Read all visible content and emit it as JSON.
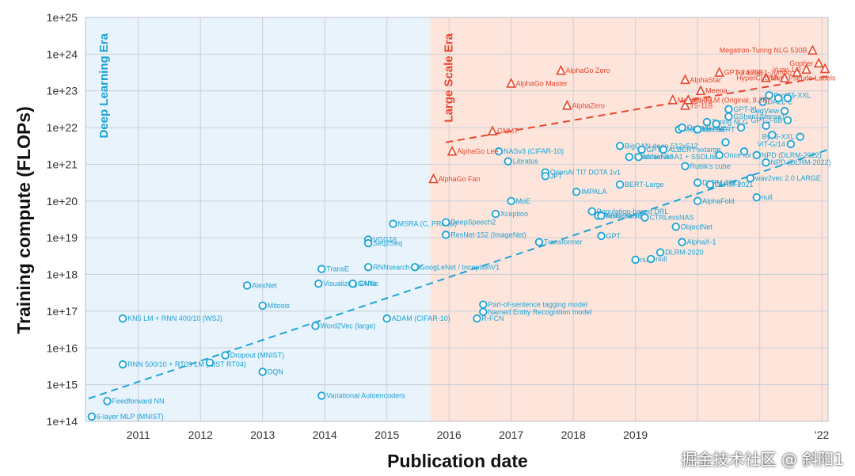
{
  "chart_data": {
    "type": "scatter",
    "xlabel": "Publication date",
    "ylabel": "Training compute (FLOPs)",
    "x_ticks": [
      "2011",
      "2012",
      "2013",
      "2014",
      "2015",
      "2016",
      "2017",
      "2018",
      "2019",
      "",
      "",
      "'22"
    ],
    "y_ticks": [
      "1e+14",
      "1e+15",
      "1e+16",
      "1e+17",
      "1e+18",
      "1e+19",
      "1e+20",
      "1e+21",
      "1e+22",
      "1e+23",
      "1e+24",
      "1e+25"
    ],
    "xlim": [
      2010.15,
      2022.1
    ],
    "ylog_exponent_range": [
      14,
      25
    ],
    "grid": true,
    "eras": [
      {
        "name": "Deep Learning Era",
        "start": 2010.15,
        "end": 2015.7,
        "color": "#e9f3fb",
        "label_color": "#1aa3d6"
      },
      {
        "name": "Large Scale Era",
        "start": 2015.7,
        "end": 2022.1,
        "color": "#fde5dc",
        "label_color": "#e8452c"
      }
    ],
    "trend_lines": [
      {
        "name": "",
        "color": "#1aa3d6",
        "x": [
          2010.2,
          2022.1
        ],
        "log10_y": [
          14.62,
          21.4
        ]
      },
      {
        "name": "",
        "color": "#e8452c",
        "x": [
          2015.95,
          2022.1
        ],
        "log10_y": [
          21.6,
          23.4
        ]
      }
    ],
    "series": [
      {
        "name": "",
        "marker": "circle",
        "color": "#1aa3d6",
        "points": [
          {
            "label": "6-layer MLP (MNIST)",
            "x": 2010.25,
            "log10_y": 14.13
          },
          {
            "label": "Feedforward NN",
            "x": 2010.5,
            "log10_y": 14.55
          },
          {
            "label": "RNN 500/10 + RT09 LM (NIST RT04)",
            "x": 2010.75,
            "log10_y": 15.55
          },
          {
            "label": "KN5 LM + RNN 400/10 (WSJ)",
            "x": 2010.75,
            "log10_y": 16.8
          },
          {
            "label": "Dropout (MNIST)",
            "x": 2012.4,
            "log10_y": 15.8
          },
          {
            "label": "",
            "x": 2012.15,
            "log10_y": 15.6
          },
          {
            "label": "AlexNet",
            "x": 2012.75,
            "log10_y": 17.7
          },
          {
            "label": "Mitosis",
            "x": 2013.0,
            "log10_y": 17.15
          },
          {
            "label": "DQN",
            "x": 2013.0,
            "log10_y": 15.35
          },
          {
            "label": "TransE",
            "x": 2013.95,
            "log10_y": 18.15
          },
          {
            "label": "Visualizing CNNs",
            "x": 2013.9,
            "log10_y": 17.75
          },
          {
            "label": "GANs",
            "x": 2014.45,
            "log10_y": 17.75
          },
          {
            "label": "Word2Vec (large)",
            "x": 2013.85,
            "log10_y": 16.6
          },
          {
            "label": "Variational Autoencoders",
            "x": 2013.95,
            "log10_y": 14.7
          },
          {
            "label": "VGG16",
            "x": 2014.7,
            "log10_y": 18.95
          },
          {
            "label": "Seq2Seq",
            "x": 2014.7,
            "log10_y": 18.85
          },
          {
            "label": "RNNsearch-50*",
            "x": 2014.7,
            "log10_y": 18.2
          },
          {
            "label": "MSRA (C, PReLU)",
            "x": 2015.1,
            "log10_y": 19.38
          },
          {
            "label": "GoogLeNet / InceptionV1",
            "x": 2015.45,
            "log10_y": 18.2
          },
          {
            "label": "ADAM (CIFAR-10)",
            "x": 2015.0,
            "log10_y": 16.8
          },
          {
            "label": "R-FCN",
            "x": 2016.45,
            "log10_y": 16.8
          },
          {
            "label": "Part-of-sentence tagging model",
            "x": 2016.55,
            "log10_y": 17.18
          },
          {
            "label": "Named Entity Recognition model",
            "x": 2016.55,
            "log10_y": 16.98
          },
          {
            "label": "DeepSpeech2",
            "x": 2015.95,
            "log10_y": 19.42
          },
          {
            "label": "ResNet-152 (ImageNet)",
            "x": 2015.95,
            "log10_y": 19.08
          },
          {
            "label": "Xception",
            "x": 2016.75,
            "log10_y": 19.65
          },
          {
            "label": "NASv3 (CIFAR-10)",
            "x": 2016.8,
            "log10_y": 21.35
          },
          {
            "label": "Libratus",
            "x": 2016.95,
            "log10_y": 21.08
          },
          {
            "label": "OpenAI TI7 DOTA 1v1",
            "x": 2017.55,
            "log10_y": 20.78
          },
          {
            "label": "JFT",
            "x": 2017.55,
            "log10_y": 20.68
          },
          {
            "label": "MoE",
            "x": 2017.0,
            "log10_y": 20.0
          },
          {
            "label": "Transformer",
            "x": 2017.45,
            "log10_y": 18.88
          },
          {
            "label": "IMPALA",
            "x": 2018.05,
            "log10_y": 20.25
          },
          {
            "label": "BigGAN-deep 512x512",
            "x": 2018.75,
            "log10_y": 21.5
          },
          {
            "label": "BERT-Large",
            "x": 2018.75,
            "log10_y": 20.45
          },
          {
            "label": "Population-based DRL",
            "x": 2018.3,
            "log10_y": 19.72
          },
          {
            "label": "ResNeXt-101",
            "x": 2018.4,
            "log10_y": 19.6
          },
          {
            "label": "GPT",
            "x": 2018.45,
            "log10_y": 19.05
          },
          {
            "label": "AmoebaNet",
            "x": 2018.45,
            "log10_y": 19.6
          },
          {
            "label": "MnasNet-A3",
            "x": 2018.9,
            "log10_y": 21.2
          },
          {
            "label": "MnasNet-A1 + SSDLite",
            "x": 2019.05,
            "log10_y": 21.2
          },
          {
            "label": "GPT-2",
            "x": 2019.1,
            "log10_y": 21.4
          },
          {
            "label": "ALBERT-xxlarge",
            "x": 2019.45,
            "log10_y": 21.4
          },
          {
            "label": "Rubik's cube",
            "x": 2019.8,
            "log10_y": 20.95
          },
          {
            "label": "ObjectNet",
            "x": 2019.65,
            "log10_y": 19.3
          },
          {
            "label": "AlphaX-1",
            "x": 2019.75,
            "log10_y": 18.88
          },
          {
            "label": "DLRM-2020",
            "x": 2019.4,
            "log10_y": 18.6
          },
          {
            "label": "null",
            "x": 2019.0,
            "log10_y": 18.4
          },
          {
            "label": "null",
            "x": 2019.25,
            "log10_y": 18.42
          },
          {
            "label": "CTRLessNAS",
            "x": 2019.15,
            "log10_y": 19.55
          },
          {
            "label": "AlphaFold",
            "x": 2020.0,
            "log10_y": 20.0
          },
          {
            "label": "wav2vec 2.0 LARGE",
            "x": 2020.85,
            "log10_y": 20.62
          },
          {
            "label": "DLRM-2021",
            "x": 2020.0,
            "log10_y": 20.5
          },
          {
            "label": "DLRM-2021",
            "x": 2020.2,
            "log10_y": 20.45
          },
          {
            "label": "null",
            "x": 2020.95,
            "log10_y": 20.1
          },
          {
            "label": "Once for All",
            "x": 2020.35,
            "log10_y": 21.25
          },
          {
            "label": "NPD (DLRM-2022)",
            "x": 2021.1,
            "log10_y": 21.05
          },
          {
            "label": "NPD (DLRM-2022)",
            "x": 2020.95,
            "log10_y": 21.25
          },
          {
            "label": "Megatron-BERT",
            "x": 2019.7,
            "log10_y": 21.95
          },
          {
            "label": "OpenAI Five",
            "x": 2019.75,
            "log10_y": 22.0
          },
          {
            "label": "Turing NLG",
            "x": 2020.15,
            "log10_y": 22.15
          },
          {
            "label": "Meena",
            "x": 2020.0,
            "log10_y": 21.95
          },
          {
            "label": "GShard (dense)",
            "x": 2020.5,
            "log10_y": 22.3
          },
          {
            "label": "GPT-XL",
            "x": 2020.5,
            "log10_y": 22.5
          },
          {
            "label": "DALL-E",
            "x": 2021.05,
            "log10_y": 22.7
          },
          {
            "label": "ProtT5-XXL",
            "x": 2021.15,
            "log10_y": 22.88
          },
          {
            "label": "CogView",
            "x": 2021.4,
            "log10_y": 22.45
          },
          {
            "label": "GPT-J-6B",
            "x": 2021.45,
            "log10_y": 22.2
          },
          {
            "label": "ViT-G/14",
            "x": 2021.5,
            "log10_y": 21.55
          },
          {
            "label": "ByT5-XXL",
            "x": 2021.65,
            "log10_y": 21.75
          },
          {
            "label": "",
            "x": 2021.3,
            "log10_y": 22.8
          },
          {
            "label": "",
            "x": 2021.45,
            "log10_y": 22.8
          },
          {
            "label": "",
            "x": 2021.1,
            "log10_y": 22.05
          },
          {
            "label": "",
            "x": 2020.75,
            "log10_y": 21.35
          },
          {
            "label": "",
            "x": 2020.45,
            "log10_y": 21.6
          },
          {
            "label": "",
            "x": 2021.2,
            "log10_y": 21.8
          },
          {
            "label": "",
            "x": 2020.7,
            "log10_y": 22.0
          },
          {
            "label": "",
            "x": 2020.3,
            "log10_y": 22.1
          }
        ]
      },
      {
        "name": "",
        "marker": "triangle",
        "color": "#e8452c",
        "points": [
          {
            "label": "AlphaGo Fan",
            "x": 2015.75,
            "log10_y": 20.6
          },
          {
            "label": "AlphaGo Lee",
            "x": 2016.05,
            "log10_y": 21.35
          },
          {
            "label": "GNMT",
            "x": 2016.7,
            "log10_y": 21.9
          },
          {
            "label": "AlphaGo Master",
            "x": 2017.0,
            "log10_y": 23.2
          },
          {
            "label": "AlphaGo Zero",
            "x": 2017.8,
            "log10_y": 23.55
          },
          {
            "label": "AlphaZero",
            "x": 2017.9,
            "log10_y": 22.6
          },
          {
            "label": "Megatron-LM (Original, 8.3B)",
            "x": 2019.6,
            "log10_y": 22.75
          },
          {
            "label": "T5-11B",
            "x": 2019.8,
            "log10_y": 22.6
          },
          {
            "label": "T5-3B",
            "x": 2019.85,
            "log10_y": 22.75
          },
          {
            "label": "Meena",
            "x": 2020.05,
            "log10_y": 23.0
          },
          {
            "label": "AlphaStar",
            "x": 2019.8,
            "log10_y": 23.3
          },
          {
            "label": "GPT-3 175B",
            "x": 2020.35,
            "log10_y": 23.5
          },
          {
            "label": "Meta Pseudo Labels",
            "x": 2021.1,
            "log10_y": 23.35
          },
          {
            "label": "HyperCLOVA",
            "x": 2021.4,
            "log10_y": 23.35
          },
          {
            "label": "Jurassic-1-Jumbo",
            "x": 2021.6,
            "log10_y": 23.5
          },
          {
            "label": "Yuan 1.0",
            "x": 2021.75,
            "log10_y": 23.58
          },
          {
            "label": "Gopher",
            "x": 2021.95,
            "log10_y": 23.75
          },
          {
            "label": "Megatron-Turing NLG 530B",
            "x": 2021.85,
            "log10_y": 24.1
          },
          {
            "label": "",
            "x": 2022.05,
            "log10_y": 23.6
          }
        ]
      }
    ]
  },
  "watermark": "掘金技术社区 @ 斜阳1"
}
